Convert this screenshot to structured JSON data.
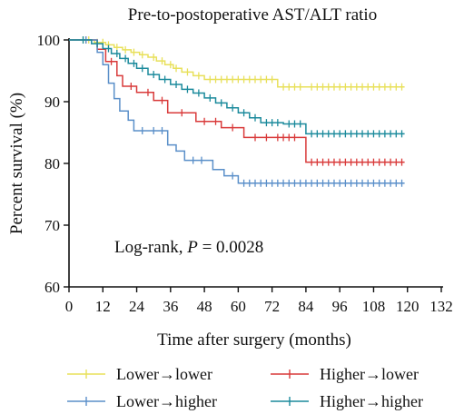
{
  "chart_data": {
    "type": "line",
    "subtype": "kaplan-meier",
    "title": "Pre-to-postoperative AST/ALT ratio",
    "xlabel": "Time after surgery (months)",
    "ylabel": "Percent survival (%)",
    "xlim": [
      0,
      132
    ],
    "ylim": [
      60,
      100
    ],
    "xticks": [
      0,
      12,
      24,
      36,
      48,
      60,
      72,
      84,
      96,
      108,
      120,
      132
    ],
    "yticks": [
      60,
      70,
      80,
      90,
      100
    ],
    "grid": false,
    "legend_position": "bottom",
    "annotation": {
      "prefix": "Log-rank, ",
      "p_symbol": "P",
      "p_value": " = 0.0028"
    },
    "series": [
      {
        "name": "Lower→lower",
        "color": "#e8e05a",
        "steps": [
          [
            0,
            100
          ],
          [
            9,
            99.6
          ],
          [
            13,
            99.2
          ],
          [
            16,
            98.8
          ],
          [
            19,
            98.4
          ],
          [
            22,
            98.0
          ],
          [
            25,
            97.6
          ],
          [
            28,
            97.2
          ],
          [
            31,
            96.6
          ],
          [
            34,
            96.0
          ],
          [
            37,
            95.4
          ],
          [
            40,
            94.8
          ],
          [
            44,
            94.2
          ],
          [
            48,
            93.6
          ],
          [
            74,
            92.4
          ],
          [
            119,
            92.4
          ]
        ],
        "censors": [
          5,
          7,
          10,
          12,
          14,
          17,
          20,
          23,
          26,
          30,
          33,
          36,
          38,
          42,
          46,
          50,
          52,
          54,
          56,
          58,
          60,
          62,
          64,
          66,
          68,
          70,
          72,
          76,
          78,
          80,
          82,
          86,
          88,
          90,
          92,
          94,
          96,
          98,
          100,
          102,
          104,
          106,
          108,
          110,
          112,
          114,
          116,
          118
        ]
      },
      {
        "name": "Higher→lower",
        "color": "#d93a3a",
        "steps": [
          [
            0,
            100
          ],
          [
            10,
            98.5
          ],
          [
            13,
            96.5
          ],
          [
            17,
            94.2
          ],
          [
            19,
            92.5
          ],
          [
            24,
            91.5
          ],
          [
            30,
            90.2
          ],
          [
            35,
            88.2
          ],
          [
            45,
            86.8
          ],
          [
            54,
            85.8
          ],
          [
            62,
            84.2
          ],
          [
            84,
            80.2
          ],
          [
            119,
            80.2
          ]
        ],
        "censors": [
          6,
          15,
          22,
          28,
          33,
          40,
          48,
          52,
          58,
          66,
          70,
          74,
          76,
          78,
          80,
          86,
          88,
          90,
          92,
          94,
          96,
          98,
          100,
          102,
          104,
          106,
          108,
          110,
          112,
          114,
          116,
          118
        ]
      },
      {
        "name": "Lower→higher",
        "color": "#5a8fc9",
        "steps": [
          [
            0,
            100
          ],
          [
            10,
            98
          ],
          [
            12,
            96
          ],
          [
            14,
            93
          ],
          [
            16,
            90.5
          ],
          [
            18,
            88.5
          ],
          [
            21,
            87
          ],
          [
            23,
            85.3
          ],
          [
            35,
            83
          ],
          [
            38,
            82
          ],
          [
            41,
            80.5
          ],
          [
            51,
            79
          ],
          [
            55,
            78
          ],
          [
            60,
            76.8
          ],
          [
            119,
            76.8
          ]
        ],
        "censors": [
          6,
          26,
          30,
          33,
          44,
          47,
          58,
          62,
          64,
          66,
          68,
          70,
          72,
          74,
          76,
          78,
          80,
          82,
          84,
          86,
          88,
          90,
          92,
          94,
          96,
          98,
          100,
          102,
          104,
          106,
          108,
          110,
          112,
          114,
          116,
          118
        ]
      },
      {
        "name": "Higher→higher",
        "color": "#1b8a9c",
        "steps": [
          [
            0,
            100
          ],
          [
            8,
            99.4
          ],
          [
            12,
            98.6
          ],
          [
            15,
            97.8
          ],
          [
            18,
            97.0
          ],
          [
            21,
            96.2
          ],
          [
            24,
            95.4
          ],
          [
            28,
            94.4
          ],
          [
            32,
            93.6
          ],
          [
            36,
            92.8
          ],
          [
            40,
            92.0
          ],
          [
            44,
            91.4
          ],
          [
            48,
            90.6
          ],
          [
            52,
            89.8
          ],
          [
            56,
            89.0
          ],
          [
            60,
            88.2
          ],
          [
            64,
            87.4
          ],
          [
            68,
            86.6
          ],
          [
            76,
            86.4
          ],
          [
            84,
            84.8
          ],
          [
            119,
            84.8
          ]
        ],
        "censors": [
          5,
          10,
          14,
          17,
          20,
          23,
          26,
          30,
          34,
          38,
          42,
          46,
          50,
          54,
          58,
          62,
          66,
          70,
          72,
          74,
          78,
          80,
          82,
          86,
          88,
          90,
          92,
          94,
          96,
          98,
          100,
          102,
          104,
          106,
          108,
          110,
          112,
          114,
          116,
          118
        ]
      }
    ]
  }
}
